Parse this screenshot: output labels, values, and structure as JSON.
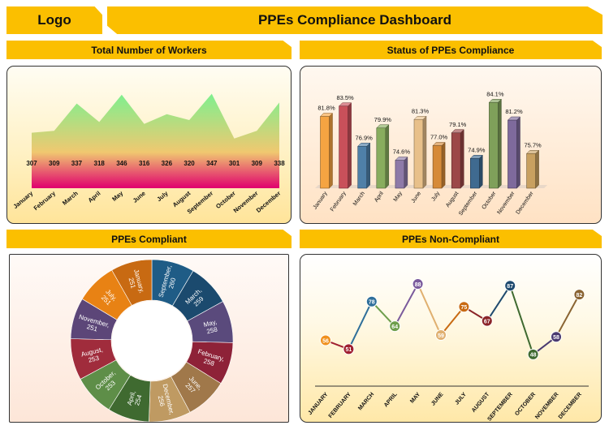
{
  "header": {
    "logo": "Logo",
    "title": "PPEs Compliance Dashboard"
  },
  "sections": {
    "workers": "Total Number of Workers",
    "status": "Status of PPEs Compliance",
    "compliant": "PPEs Compliant",
    "noncompliant": "PPEs Non-Compliant"
  },
  "chart_data": [
    {
      "type": "area",
      "title": "Total Number of Workers",
      "categories": [
        "January",
        "February",
        "March",
        "April",
        "May",
        "June",
        "July",
        "August",
        "September",
        "October",
        "November",
        "December"
      ],
      "values": [
        307,
        309,
        337,
        318,
        346,
        316,
        326,
        320,
        347,
        301,
        309,
        338
      ],
      "colors": {
        "top": "#7ef08f",
        "mid": "#f0c870",
        "bottom": "#e0006e"
      }
    },
    {
      "type": "bar",
      "title": "Status of PPEs Compliance",
      "categories": [
        "January",
        "February",
        "March",
        "April",
        "May",
        "June",
        "July",
        "August",
        "September",
        "October",
        "November",
        "December"
      ],
      "values": [
        81.8,
        83.5,
        76.9,
        79.9,
        74.6,
        81.3,
        77.0,
        79.1,
        74.9,
        84.1,
        81.2,
        75.7
      ],
      "labels": [
        "81.8%",
        "83.5%",
        "76.9%",
        "79.9%",
        "74.6%",
        "81.3%",
        "77.0%",
        "79.1%",
        "74.9%",
        "84.1%",
        "81.2%",
        "75.7%"
      ],
      "ylim": [
        70,
        86
      ],
      "colors": [
        "#f5a442",
        "#c9505a",
        "#4f80a8",
        "#88ad5e",
        "#8e7aa8",
        "#e8c08a",
        "#d68a38",
        "#9c4848",
        "#3f6a90",
        "#7fa05a",
        "#7e6a9c",
        "#c8a060"
      ]
    },
    {
      "type": "pie",
      "title": "PPEs Compliant",
      "slices": [
        {
          "month": "September",
          "value": 260,
          "color": "#1f5c86"
        },
        {
          "month": "March",
          "value": 259,
          "color": "#1b4a6e"
        },
        {
          "month": "May",
          "value": 258,
          "color": "#5a4a7c"
        },
        {
          "month": "February",
          "value": 258,
          "color": "#8e2238"
        },
        {
          "month": "June",
          "value": 257,
          "color": "#a0784a"
        },
        {
          "month": "December",
          "value": 256,
          "color": "#bf9a62"
        },
        {
          "month": "April",
          "value": 254,
          "color": "#3f6a30"
        },
        {
          "month": "October",
          "value": 253,
          "color": "#5e8e48"
        },
        {
          "month": "August",
          "value": 253,
          "color": "#a02c3c"
        },
        {
          "month": "November",
          "value": 251,
          "color": "#5c4678"
        },
        {
          "month": "July",
          "value": 251,
          "color": "#e88214"
        },
        {
          "month": "January",
          "value": 251,
          "color": "#c86a12"
        }
      ]
    },
    {
      "type": "line",
      "title": "PPEs Non-Compliant",
      "categories": [
        "JANUARY",
        "FEBRUARY",
        "MARCH",
        "APRIL",
        "MAY",
        "JUNE",
        "JULY",
        "AUGUST",
        "SEPTEMBER",
        "OCTOBER",
        "NOVEMBER",
        "DECEMBER"
      ],
      "values": [
        56,
        51,
        78,
        64,
        88,
        59,
        75,
        67,
        87,
        48,
        58,
        82
      ],
      "colors": [
        "#f0901c",
        "#a02030",
        "#2f6f9a",
        "#6e9e4c",
        "#7a5a9c",
        "#e0b070",
        "#c86a12",
        "#8a2428",
        "#1f4a6e",
        "#3f6a30",
        "#4a3a70",
        "#8a6432"
      ]
    }
  ]
}
